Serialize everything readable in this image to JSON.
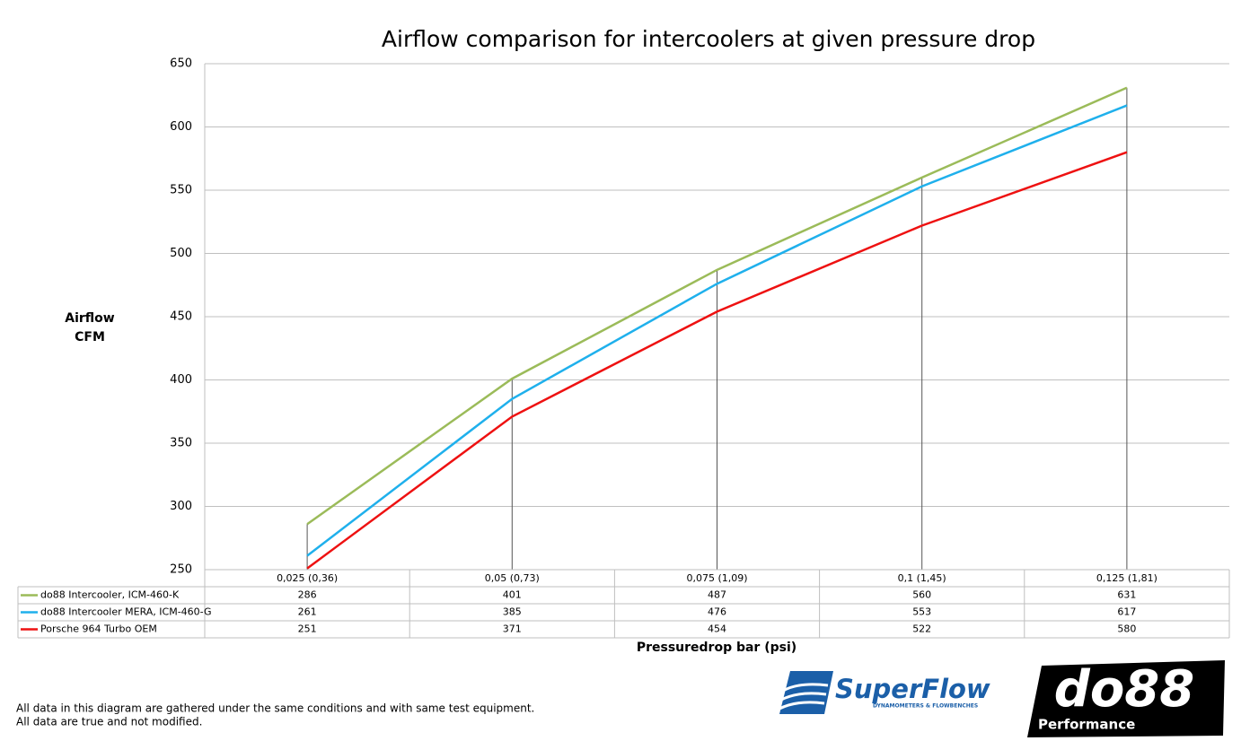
{
  "chart_data": {
    "type": "line",
    "title": "Airflow comparison for intercoolers at given pressure drop",
    "y_label": [
      "Airflow",
      "CFM"
    ],
    "x_label": "Pressuredrop bar (psi)",
    "categories": [
      "0,025 (0,36)",
      "0,05 (0,73)",
      "0,075 (1,09)",
      "0,1 (1,45)",
      "0,125 (1,81)"
    ],
    "series": [
      {
        "name": "do88 Intercooler, ICM-460-K",
        "color": "#9bbb59",
        "values": [
          286,
          401,
          487,
          560,
          631
        ]
      },
      {
        "name": "do88 Intercooler MERA, ICM-460-G",
        "color": "#1fb0ec",
        "values": [
          261,
          385,
          476,
          553,
          617
        ]
      },
      {
        "name": "Porsche 964 Turbo OEM",
        "color": "#ee1111",
        "values": [
          251,
          371,
          454,
          522,
          580
        ]
      }
    ],
    "ylim": [
      250,
      650
    ],
    "yticks": [
      250,
      300,
      350,
      400,
      450,
      500,
      550,
      600,
      650
    ],
    "grid": true
  },
  "footnote": [
    "All data in this diagram are gathered under the same conditions and with same test equipment.",
    "All data are true and not modified."
  ],
  "logos": {
    "superflow": "SuperFlow",
    "superflow_tagline": "DYNAMOMETERS & FLOWBENCHES",
    "do88": "do88",
    "do88_sub": "Performance"
  }
}
